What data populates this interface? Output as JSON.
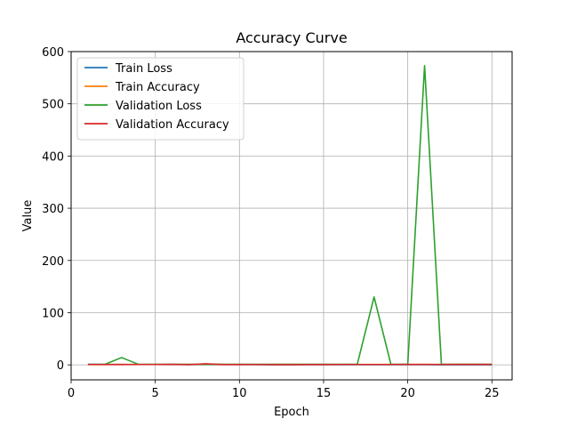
{
  "chart_data": {
    "type": "line",
    "title": "Accuracy Curve",
    "xlabel": "Epoch",
    "ylabel": "Value",
    "xlim": [
      0,
      26.2
    ],
    "ylim": [
      -28.7,
      600
    ],
    "xticks": [
      0,
      5,
      10,
      15,
      20,
      25
    ],
    "yticks": [
      0,
      100,
      200,
      300,
      400,
      500,
      600
    ],
    "grid": true,
    "legend_position": "top-left",
    "x": [
      1,
      2,
      3,
      4,
      5,
      6,
      7,
      8,
      9,
      10,
      11,
      12,
      13,
      14,
      15,
      16,
      17,
      18,
      19,
      20,
      21,
      22,
      23,
      24,
      25
    ],
    "series": [
      {
        "name": "Train Loss",
        "color": "#1f77b4",
        "values": [
          1.0,
          0.9,
          0.8,
          0.7,
          0.7,
          0.6,
          0.6,
          0.5,
          0.5,
          0.5,
          0.4,
          0.4,
          0.4,
          0.4,
          0.3,
          0.3,
          0.3,
          0.3,
          0.3,
          0.3,
          0.3,
          0.2,
          0.2,
          0.2,
          0.2
        ]
      },
      {
        "name": "Train Accuracy",
        "color": "#ff7f0e",
        "values": [
          0.7,
          0.7,
          0.8,
          0.8,
          0.8,
          0.8,
          0.8,
          0.9,
          0.9,
          0.9,
          0.9,
          0.9,
          0.9,
          0.9,
          0.9,
          0.9,
          0.9,
          0.9,
          0.9,
          0.9,
          0.9,
          0.9,
          0.9,
          0.9,
          0.9
        ]
      },
      {
        "name": "Validation Loss",
        "color": "#2ca02c",
        "values": [
          1,
          1,
          14,
          1,
          1,
          1,
          1,
          1,
          1,
          1,
          1,
          1,
          1,
          1,
          1,
          1,
          1,
          130,
          1,
          1,
          573,
          1,
          1,
          1,
          1
        ]
      },
      {
        "name": "Validation Accuracy",
        "color": "#d62728",
        "values": [
          0.6,
          0.5,
          0.6,
          0.7,
          0.7,
          1.0,
          0.4,
          2.0,
          0.6,
          0.5,
          0.7,
          0.4,
          0.3,
          0.6,
          0.6,
          0.7,
          0.7,
          0.7,
          0.7,
          0.8,
          0.9,
          0.7,
          0.8,
          0.8,
          0.8
        ]
      }
    ]
  }
}
